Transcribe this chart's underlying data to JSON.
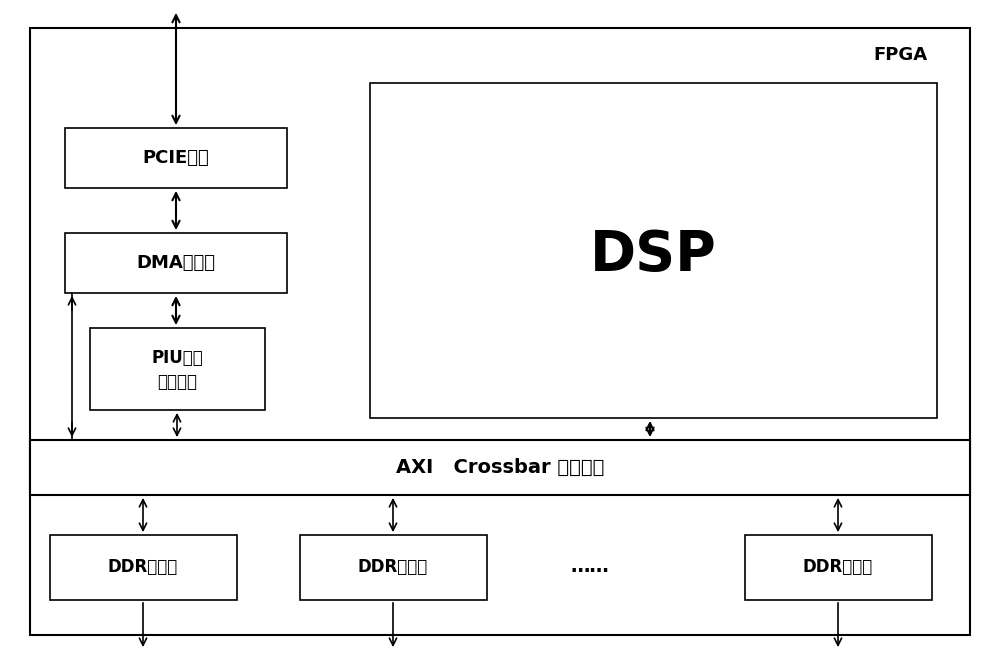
{
  "bg_color": "#ffffff",
  "border_color": "#000000",
  "box_color": "#ffffff",
  "text_color": "#000000",
  "fpga_label": "FPGA",
  "dsp_label": "DSP",
  "pcie_label": "PCIE接口",
  "dma_label": "DMA控制器",
  "piu_line1": "PIU外围",
  "piu_line2": "接口部件",
  "axi_label": "AXI   Crossbar 交叉开关",
  "ddr1_label": "DDR控制器",
  "ddr2_label": "DDR控制器",
  "ddr3_label": "DDR控制器",
  "dots_label": "……",
  "lw_thin": 1.2,
  "lw_thick": 1.5
}
